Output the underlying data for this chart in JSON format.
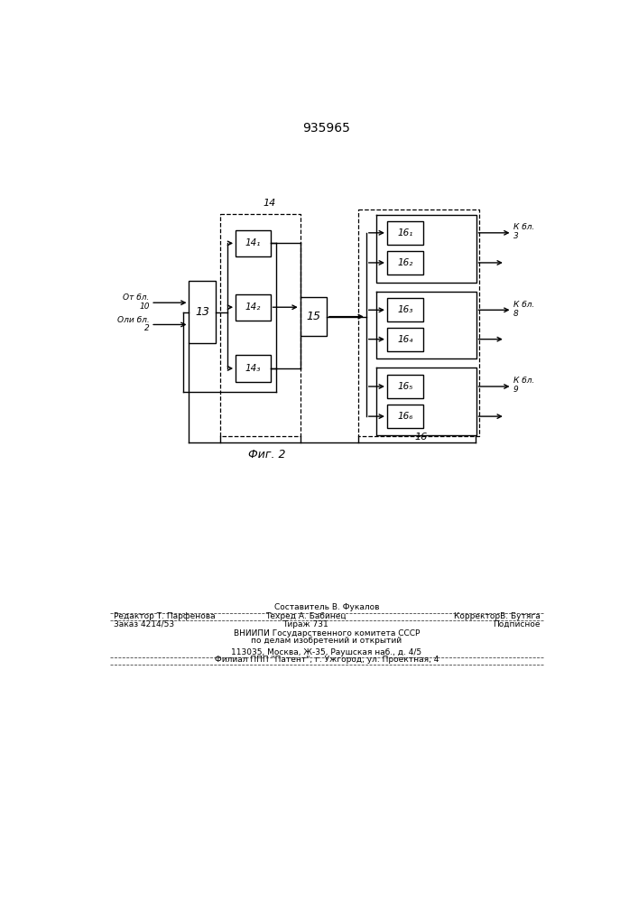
{
  "title": "935965",
  "fig_label": "Фиг. 2",
  "bg_color": "#ffffff",
  "line_color": "#000000",
  "block13_label": "13",
  "block14_label": "14",
  "block15_label": "15",
  "block16_label": "16",
  "sub14_labels": [
    "14₁",
    "14₂",
    "14₃"
  ],
  "sub16_labels": [
    "16₁",
    "16₂",
    "16₃",
    "16₄",
    "16₅",
    "16₆"
  ],
  "in1_line1": "От бл.",
  "in1_line2": "10",
  "in2_line1": "Оли бл.",
  "in2_line2": "2",
  "out1_line1": "К бл.",
  "out1_line2": "3",
  "out2_line1": "К бл.",
  "out2_line2": "8",
  "out3_line1": "К бл.",
  "out3_line2": "9",
  "footer_line0": "Составитель В. Фукалов",
  "footer_line1a": "Редактор Т. Парфенова",
  "footer_line1b": "Техред А. Бабинец",
  "footer_line1c": "КорректорВ. Бутяга",
  "footer_line2a": "Заказ 4214/53",
  "footer_line2b": "Тираж 731",
  "footer_line2c": "Подписное",
  "footer_line3": "ВНИИПИ Государственного комитета СССР",
  "footer_line4": "по делам изобретений и открытий",
  "footer_line5": "113035, Москва, Ж-35, Раушская наб., д. 4/5",
  "footer_line6": "Филиал ППП \"Патент\", г. Ужгород, ул. Проектная, 4"
}
